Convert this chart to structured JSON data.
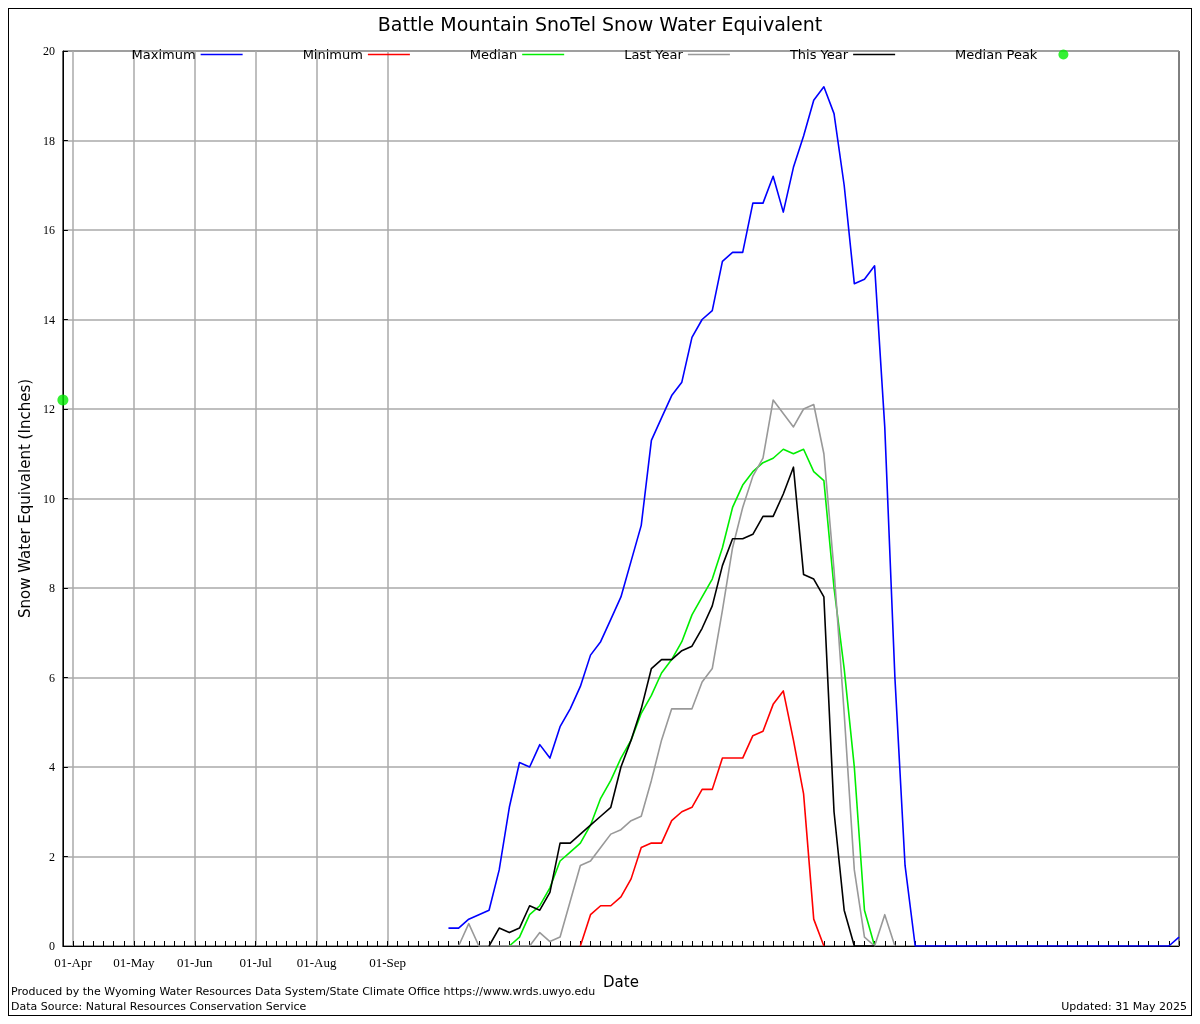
{
  "chart_data": {
    "type": "line",
    "title": "Battle Mountain SnoTel Snow Water Equivalent",
    "xlabel": "Date",
    "ylabel": "Snow Water Equivalent (Inches)",
    "annotations": [
      "Produced by the Wyoming Water Resources Data System/State Climate Office https://www.wrds.uwyo.edu",
      "Data Source: Natural Resources Conservation Service",
      "Updated: 31 May 2025"
    ],
    "categories": [
      null,
      "01-Apr",
      null,
      null,
      null,
      null,
      null,
      "01-May",
      null,
      null,
      null,
      null,
      null,
      "01-Jun",
      null,
      null,
      null,
      null,
      null,
      "01-Jul",
      null,
      null,
      null,
      null,
      null,
      "01-Aug",
      null,
      null,
      null,
      null,
      null,
      null,
      "01-Sep",
      null,
      null,
      null,
      null,
      null,
      null,
      null,
      null,
      null,
      null,
      null,
      null,
      null,
      null,
      null,
      null,
      null,
      null,
      null,
      null,
      null,
      null,
      null,
      null,
      null,
      null,
      null,
      null,
      null,
      null,
      null,
      null,
      null,
      null,
      null,
      null,
      null,
      null,
      null,
      null,
      null,
      null,
      null,
      null,
      null,
      null,
      null,
      null,
      null,
      null,
      null,
      null,
      null,
      null,
      null,
      null,
      null,
      null,
      null,
      null,
      null,
      null,
      null,
      null,
      null,
      null,
      null,
      null,
      null,
      null,
      null,
      null,
      null,
      null,
      null,
      null,
      null,
      null
    ],
    "ylim": [
      0,
      20
    ],
    "yticks": [
      0,
      2,
      4,
      6,
      8,
      10,
      12,
      14,
      16,
      18,
      20
    ],
    "grid": true,
    "legend": "top",
    "marker": "none",
    "line_style": "solid",
    "series": [
      {
        "name": "Maximum",
        "color": "#0000ff",
        "values": [
          null,
          null,
          null,
          null,
          null,
          null,
          null,
          null,
          null,
          null,
          null,
          null,
          null,
          null,
          null,
          null,
          null,
          null,
          null,
          null,
          null,
          null,
          null,
          null,
          null,
          null,
          null,
          null,
          null,
          null,
          null,
          null,
          null,
          null,
          null,
          null,
          null,
          null,
          0.4,
          0.4,
          0.6,
          0.7,
          0.8,
          1.7,
          3.1,
          4.1,
          4.0,
          4.5,
          4.2,
          4.9,
          5.3,
          5.8,
          6.5,
          6.8,
          7.3,
          7.8,
          8.6,
          9.4,
          11.3,
          11.8,
          12.3,
          12.6,
          13.6,
          14.0,
          14.2,
          15.3,
          15.5,
          15.5,
          16.6,
          16.6,
          17.2,
          16.4,
          17.4,
          18.1,
          18.9,
          19.2,
          18.6,
          17.0,
          14.8,
          14.9,
          15.2,
          11.6,
          6.0,
          1.8,
          0,
          0,
          0,
          0,
          0,
          0,
          0,
          0,
          0,
          0,
          0,
          0,
          0,
          0,
          0,
          0,
          0,
          0,
          0,
          0,
          0,
          0,
          0,
          0,
          0,
          0,
          0.2
        ]
      },
      {
        "name": "Minimum",
        "color": "#ff0000",
        "values": [
          null,
          null,
          null,
          null,
          null,
          null,
          null,
          null,
          null,
          null,
          null,
          null,
          null,
          null,
          null,
          null,
          null,
          null,
          null,
          null,
          null,
          null,
          null,
          null,
          null,
          null,
          null,
          null,
          null,
          null,
          null,
          null,
          null,
          null,
          null,
          null,
          null,
          null,
          null,
          null,
          null,
          null,
          null,
          null,
          null,
          null,
          null,
          null,
          null,
          null,
          null,
          0,
          0.7,
          0.9,
          0.9,
          1.1,
          1.5,
          2.2,
          2.3,
          2.3,
          2.8,
          3.0,
          3.1,
          3.5,
          3.5,
          4.2,
          4.2,
          4.2,
          4.7,
          4.8,
          5.4,
          5.7,
          4.6,
          3.4,
          0.6,
          0,
          null,
          null,
          null,
          null,
          null,
          null,
          null,
          null,
          null,
          null,
          null,
          null,
          null,
          null,
          null,
          null,
          null,
          null,
          null,
          null,
          null,
          null,
          null,
          null,
          null,
          null,
          null,
          null,
          null,
          null,
          null,
          null,
          null,
          null,
          null
        ]
      },
      {
        "name": "Median",
        "color": "#00ee00",
        "values": [
          null,
          null,
          null,
          null,
          null,
          null,
          null,
          null,
          null,
          null,
          null,
          null,
          null,
          null,
          null,
          null,
          null,
          null,
          null,
          null,
          null,
          null,
          null,
          null,
          null,
          null,
          null,
          null,
          null,
          null,
          null,
          null,
          null,
          null,
          null,
          null,
          null,
          null,
          null,
          null,
          null,
          null,
          null,
          null,
          0,
          0.2,
          0.7,
          0.9,
          1.3,
          1.9,
          2.1,
          2.3,
          2.7,
          3.3,
          3.7,
          4.2,
          4.6,
          5.2,
          5.6,
          6.1,
          6.4,
          6.8,
          7.4,
          7.8,
          8.2,
          8.9,
          9.8,
          10.3,
          10.6,
          10.8,
          10.9,
          11.1,
          11.0,
          11.1,
          10.6,
          10.4,
          8.0,
          6.2,
          4.0,
          0.8,
          0,
          null,
          null,
          null,
          null,
          null,
          null,
          null,
          null,
          null,
          null,
          null,
          null,
          null,
          null,
          null,
          null,
          null,
          null,
          null,
          null,
          null,
          null,
          null,
          null,
          null,
          null,
          null,
          null,
          null,
          null
        ]
      },
      {
        "name": "Last Year",
        "color": "#999999",
        "values": [
          null,
          null,
          null,
          null,
          null,
          null,
          null,
          null,
          null,
          null,
          null,
          null,
          null,
          null,
          null,
          null,
          null,
          null,
          null,
          null,
          null,
          null,
          null,
          null,
          null,
          null,
          null,
          null,
          null,
          null,
          null,
          null,
          null,
          null,
          null,
          null,
          null,
          null,
          null,
          0,
          0.5,
          0,
          0,
          0,
          0,
          0,
          0,
          0.3,
          0.1,
          0.2,
          1.0,
          1.8,
          1.9,
          2.2,
          2.5,
          2.6,
          2.8,
          2.9,
          3.7,
          4.6,
          5.3,
          5.3,
          5.3,
          5.9,
          6.2,
          7.5,
          8.9,
          9.8,
          10.5,
          10.9,
          12.2,
          11.9,
          11.6,
          12.0,
          12.1,
          11.0,
          8.4,
          5.2,
          1.7,
          0.2,
          0,
          0.7,
          0,
          null,
          null,
          null,
          null,
          null,
          null,
          null,
          null,
          null,
          null,
          null,
          null,
          null,
          null,
          null,
          null,
          null,
          null,
          null,
          null,
          null,
          null,
          null,
          null,
          null,
          null,
          null,
          null
        ]
      },
      {
        "name": "This Year",
        "color": "#000000",
        "values": [
          null,
          null,
          null,
          null,
          null,
          null,
          null,
          null,
          null,
          null,
          null,
          null,
          null,
          null,
          null,
          null,
          null,
          null,
          null,
          null,
          null,
          null,
          null,
          null,
          null,
          null,
          null,
          null,
          null,
          null,
          null,
          null,
          null,
          null,
          null,
          null,
          null,
          null,
          null,
          null,
          null,
          null,
          0,
          0.4,
          0.3,
          0.4,
          0.9,
          0.8,
          1.2,
          2.3,
          2.3,
          2.5,
          2.7,
          2.9,
          3.1,
          4.0,
          4.6,
          5.3,
          6.2,
          6.4,
          6.4,
          6.6,
          6.7,
          7.1,
          7.6,
          8.5,
          9.1,
          9.1,
          9.2,
          9.6,
          9.6,
          10.1,
          10.7,
          8.3,
          8.2,
          7.8,
          3.0,
          0.8,
          0,
          0,
          0,
          null,
          null,
          null,
          null,
          null,
          null,
          null,
          null,
          null,
          null,
          null,
          null,
          null,
          null,
          null,
          null,
          null,
          null,
          null,
          null,
          null,
          null,
          null,
          null,
          null,
          null,
          null,
          null,
          null,
          null
        ]
      },
      {
        "name": "Median Peak",
        "type": "scatter",
        "marker": "circle",
        "color": "#00ee00",
        "values": [
          12.2,
          null,
          null,
          null,
          null,
          null,
          null,
          null,
          null,
          null,
          null,
          null,
          null,
          null,
          null,
          null,
          null,
          null,
          null,
          null,
          null,
          null,
          null,
          null,
          null,
          null,
          null,
          null,
          null,
          null,
          null,
          null,
          null,
          null,
          null,
          null,
          null,
          null,
          null,
          null,
          null,
          null,
          null,
          null,
          null,
          null,
          null,
          null,
          null,
          null,
          null,
          null,
          null,
          null,
          null,
          null,
          null,
          null,
          null,
          null,
          null,
          null,
          null,
          null,
          null,
          null,
          null,
          null,
          null,
          null,
          null,
          null,
          null,
          null,
          null,
          null,
          null,
          null,
          null,
          null,
          null,
          null,
          null,
          null,
          null,
          null,
          null,
          null,
          null,
          null,
          null,
          null,
          null,
          null,
          null,
          null,
          null,
          null,
          null,
          null,
          null,
          null,
          null,
          null,
          null,
          null,
          null,
          null,
          null,
          null,
          null
        ]
      }
    ]
  }
}
